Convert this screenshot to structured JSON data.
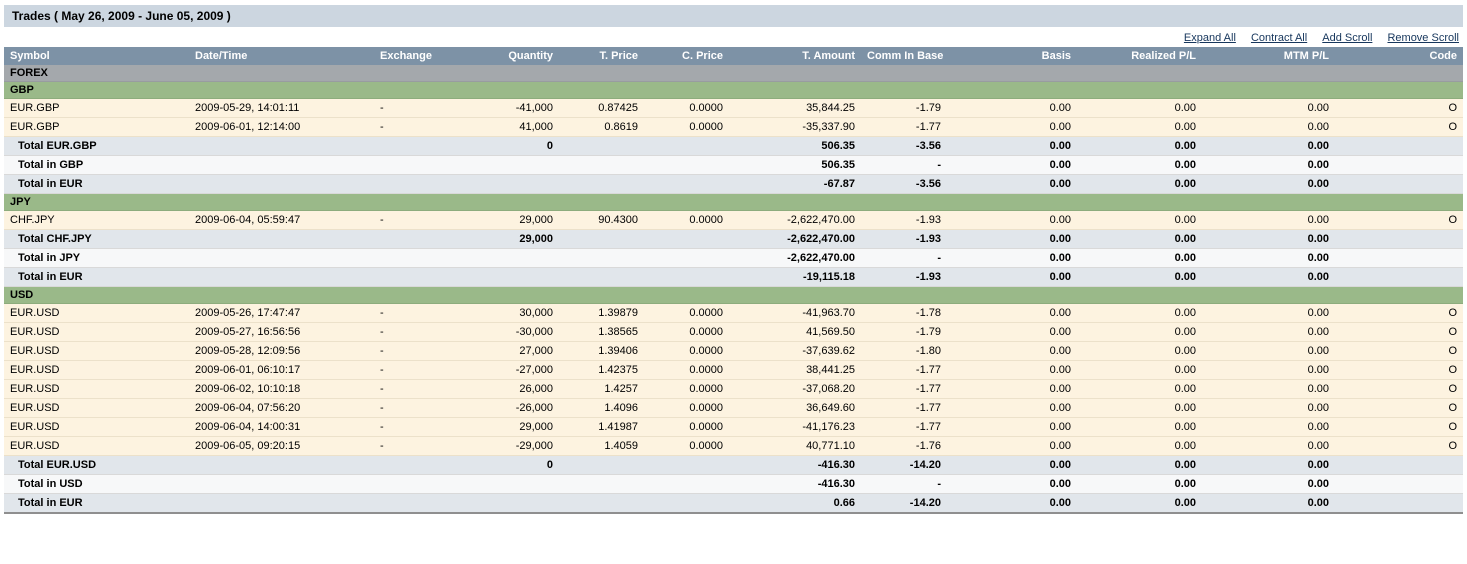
{
  "header": {
    "title": "Trades ( May 26, 2009 - June 05, 2009 )"
  },
  "links": [
    "Expand All",
    "Contract All",
    "Add Scroll",
    "Remove Scroll"
  ],
  "columns": [
    "Symbol",
    "Date/Time",
    "Exchange",
    "Quantity",
    "T. Price",
    "C. Price",
    "T. Amount",
    "Comm In Base",
    "Basis",
    "Realized P/L",
    "MTM P/L",
    "Code"
  ],
  "colors": {
    "titlebar_bg": "#ccd6e0",
    "link_color": "#16365c",
    "header_bg": "#7d92a6",
    "section_bg": "#a4a8ac",
    "group_bg": "#9ab989",
    "trade_bg": "#fdf3e0",
    "total_shade_a": "#e1e6eb",
    "total_shade_b": "#f7f8f9"
  },
  "rows": [
    {
      "type": "section",
      "label": "FOREX"
    },
    {
      "type": "group",
      "label": "GBP"
    },
    {
      "type": "trade",
      "cells": [
        "EUR.GBP",
        "2009-05-29, 14:01:11",
        "-",
        "-41,000",
        "0.87425",
        "0.0000",
        "35,844.25",
        "-1.79",
        "0.00",
        "0.00",
        "0.00",
        "O"
      ]
    },
    {
      "type": "trade",
      "cells": [
        "EUR.GBP",
        "2009-06-01, 12:14:00",
        "-",
        "41,000",
        "0.8619",
        "0.0000",
        "-35,337.90",
        "-1.77",
        "0.00",
        "0.00",
        "0.00",
        "O"
      ]
    },
    {
      "type": "total",
      "shade": "a",
      "cells": [
        "Total EUR.GBP",
        "",
        "",
        "0",
        "",
        "",
        "506.35",
        "-3.56",
        "0.00",
        "0.00",
        "0.00",
        ""
      ]
    },
    {
      "type": "total",
      "shade": "b",
      "cells": [
        "Total in GBP",
        "",
        "",
        "",
        "",
        "",
        "506.35",
        "-",
        "0.00",
        "0.00",
        "0.00",
        ""
      ]
    },
    {
      "type": "total",
      "shade": "a",
      "cells": [
        "Total in EUR",
        "",
        "",
        "",
        "",
        "",
        "-67.87",
        "-3.56",
        "0.00",
        "0.00",
        "0.00",
        ""
      ]
    },
    {
      "type": "group",
      "label": "JPY"
    },
    {
      "type": "trade",
      "cells": [
        "CHF.JPY",
        "2009-06-04, 05:59:47",
        "-",
        "29,000",
        "90.4300",
        "0.0000",
        "-2,622,470.00",
        "-1.93",
        "0.00",
        "0.00",
        "0.00",
        "O"
      ]
    },
    {
      "type": "total",
      "shade": "a",
      "cells": [
        "Total CHF.JPY",
        "",
        "",
        "29,000",
        "",
        "",
        "-2,622,470.00",
        "-1.93",
        "0.00",
        "0.00",
        "0.00",
        ""
      ]
    },
    {
      "type": "total",
      "shade": "b",
      "cells": [
        "Total in JPY",
        "",
        "",
        "",
        "",
        "",
        "-2,622,470.00",
        "-",
        "0.00",
        "0.00",
        "0.00",
        ""
      ]
    },
    {
      "type": "total",
      "shade": "a",
      "cells": [
        "Total in EUR",
        "",
        "",
        "",
        "",
        "",
        "-19,115.18",
        "-1.93",
        "0.00",
        "0.00",
        "0.00",
        ""
      ]
    },
    {
      "type": "group",
      "label": "USD"
    },
    {
      "type": "trade",
      "cells": [
        "EUR.USD",
        "2009-05-26, 17:47:47",
        "-",
        "30,000",
        "1.39879",
        "0.0000",
        "-41,963.70",
        "-1.78",
        "0.00",
        "0.00",
        "0.00",
        "O"
      ]
    },
    {
      "type": "trade",
      "cells": [
        "EUR.USD",
        "2009-05-27, 16:56:56",
        "-",
        "-30,000",
        "1.38565",
        "0.0000",
        "41,569.50",
        "-1.79",
        "0.00",
        "0.00",
        "0.00",
        "O"
      ]
    },
    {
      "type": "trade",
      "cells": [
        "EUR.USD",
        "2009-05-28, 12:09:56",
        "-",
        "27,000",
        "1.39406",
        "0.0000",
        "-37,639.62",
        "-1.80",
        "0.00",
        "0.00",
        "0.00",
        "O"
      ]
    },
    {
      "type": "trade",
      "cells": [
        "EUR.USD",
        "2009-06-01, 06:10:17",
        "-",
        "-27,000",
        "1.42375",
        "0.0000",
        "38,441.25",
        "-1.77",
        "0.00",
        "0.00",
        "0.00",
        "O"
      ]
    },
    {
      "type": "trade",
      "cells": [
        "EUR.USD",
        "2009-06-02, 10:10:18",
        "-",
        "26,000",
        "1.4257",
        "0.0000",
        "-37,068.20",
        "-1.77",
        "0.00",
        "0.00",
        "0.00",
        "O"
      ]
    },
    {
      "type": "trade",
      "cells": [
        "EUR.USD",
        "2009-06-04, 07:56:20",
        "-",
        "-26,000",
        "1.4096",
        "0.0000",
        "36,649.60",
        "-1.77",
        "0.00",
        "0.00",
        "0.00",
        "O"
      ]
    },
    {
      "type": "trade",
      "cells": [
        "EUR.USD",
        "2009-06-04, 14:00:31",
        "-",
        "29,000",
        "1.41987",
        "0.0000",
        "-41,176.23",
        "-1.77",
        "0.00",
        "0.00",
        "0.00",
        "O"
      ]
    },
    {
      "type": "trade",
      "cells": [
        "EUR.USD",
        "2009-06-05, 09:20:15",
        "-",
        "-29,000",
        "1.4059",
        "0.0000",
        "40,771.10",
        "-1.76",
        "0.00",
        "0.00",
        "0.00",
        "O"
      ]
    },
    {
      "type": "total",
      "shade": "a",
      "cells": [
        "Total EUR.USD",
        "",
        "",
        "0",
        "",
        "",
        "-416.30",
        "-14.20",
        "0.00",
        "0.00",
        "0.00",
        ""
      ]
    },
    {
      "type": "total",
      "shade": "b",
      "cells": [
        "Total in USD",
        "",
        "",
        "",
        "",
        "",
        "-416.30",
        "-",
        "0.00",
        "0.00",
        "0.00",
        ""
      ]
    },
    {
      "type": "total",
      "shade": "a",
      "cells": [
        "Total in EUR",
        "",
        "",
        "",
        "",
        "",
        "0.66",
        "-14.20",
        "0.00",
        "0.00",
        "0.00",
        ""
      ]
    }
  ]
}
